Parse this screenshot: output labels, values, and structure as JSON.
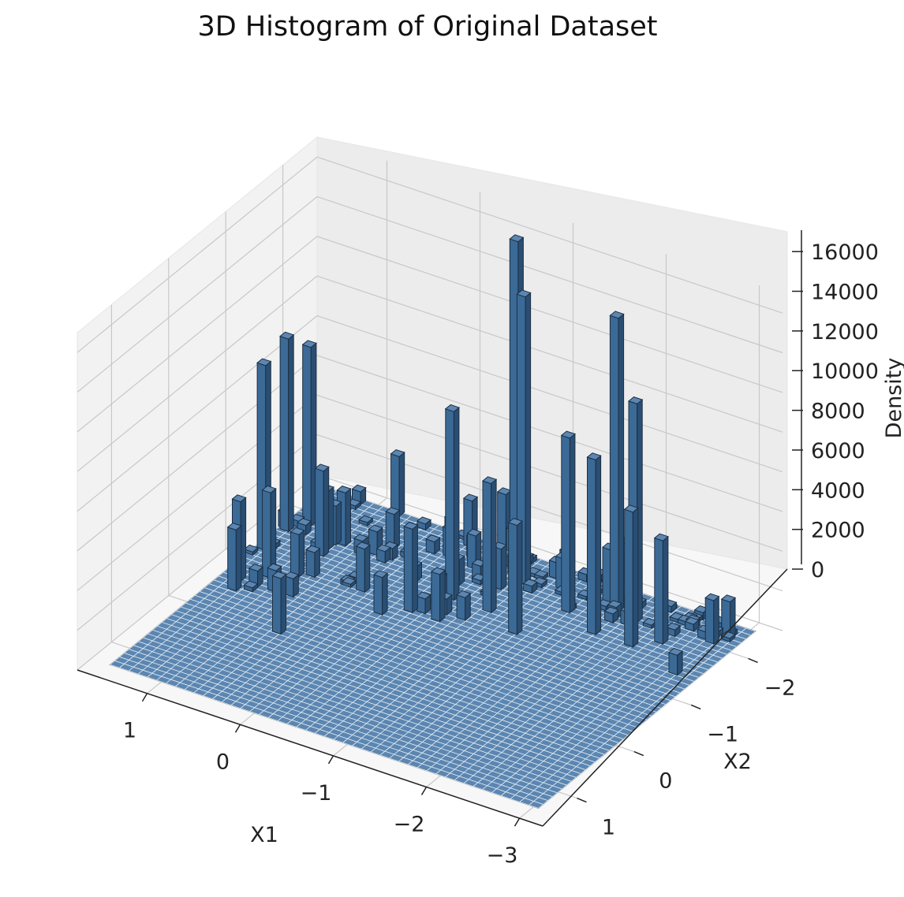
{
  "chart_data": {
    "type": "bar3d",
    "title": "3D Histogram of Original Dataset",
    "xlabel": "X1",
    "ylabel": "X2",
    "zlabel": "Density",
    "xticks": [
      "1",
      "0",
      "−1",
      "−2",
      "−3"
    ],
    "yticks": [
      "−2",
      "−1",
      "0",
      "1"
    ],
    "zticks": [
      "0",
      "2000",
      "4000",
      "6000",
      "8000",
      "10000",
      "12000",
      "14000",
      "16000"
    ],
    "zlim": [
      0,
      17000
    ],
    "grid": true,
    "bar_color": "#3b6a96",
    "bar_top_color": "#5b86b1",
    "bar_edge_color": "#1d2f43",
    "peaks": [
      {
        "x1": 1.48,
        "x2": -1.23,
        "value": 9300
      },
      {
        "x1": 1.48,
        "x2": -1.63,
        "value": 9700
      },
      {
        "x1": 1.36,
        "x2": -1.83,
        "value": 9000
      },
      {
        "x1": 1.38,
        "x2": -0.63,
        "value": 4000
      },
      {
        "x1": 0.98,
        "x2": -1.43,
        "value": 4300
      },
      {
        "x1": 1.18,
        "x2": -0.83,
        "value": 4300
      },
      {
        "x1": 0.78,
        "x2": -2.43,
        "value": 3000
      },
      {
        "x1": 0.58,
        "x2": -0.03,
        "value": 2800
      },
      {
        "x1": -0.62,
        "x2": -2.23,
        "value": 16500
      },
      {
        "x1": -0.82,
        "x2": -2.03,
        "value": 14500
      },
      {
        "x1": -0.42,
        "x2": -1.43,
        "value": 9500
      },
      {
        "x1": -1.42,
        "x2": -1.83,
        "value": 8800
      },
      {
        "x1": -0.82,
        "x2": -1.43,
        "value": 6500
      },
      {
        "x1": -1.82,
        "x2": -2.03,
        "value": 15000
      },
      {
        "x1": -1.82,
        "x2": -1.63,
        "value": 8800
      },
      {
        "x1": -2.02,
        "x2": -2.03,
        "value": 11000
      },
      {
        "x1": -2.22,
        "x2": -1.63,
        "value": 6800
      },
      {
        "x1": -2.42,
        "x2": -1.83,
        "value": 5200
      },
      {
        "x1": -1.22,
        "x2": -1.23,
        "value": 5500
      },
      {
        "x1": -0.22,
        "x2": -1.03,
        "value": 4200
      },
      {
        "x1": -2.82,
        "x2": -1.43,
        "value": 1000
      }
    ]
  }
}
